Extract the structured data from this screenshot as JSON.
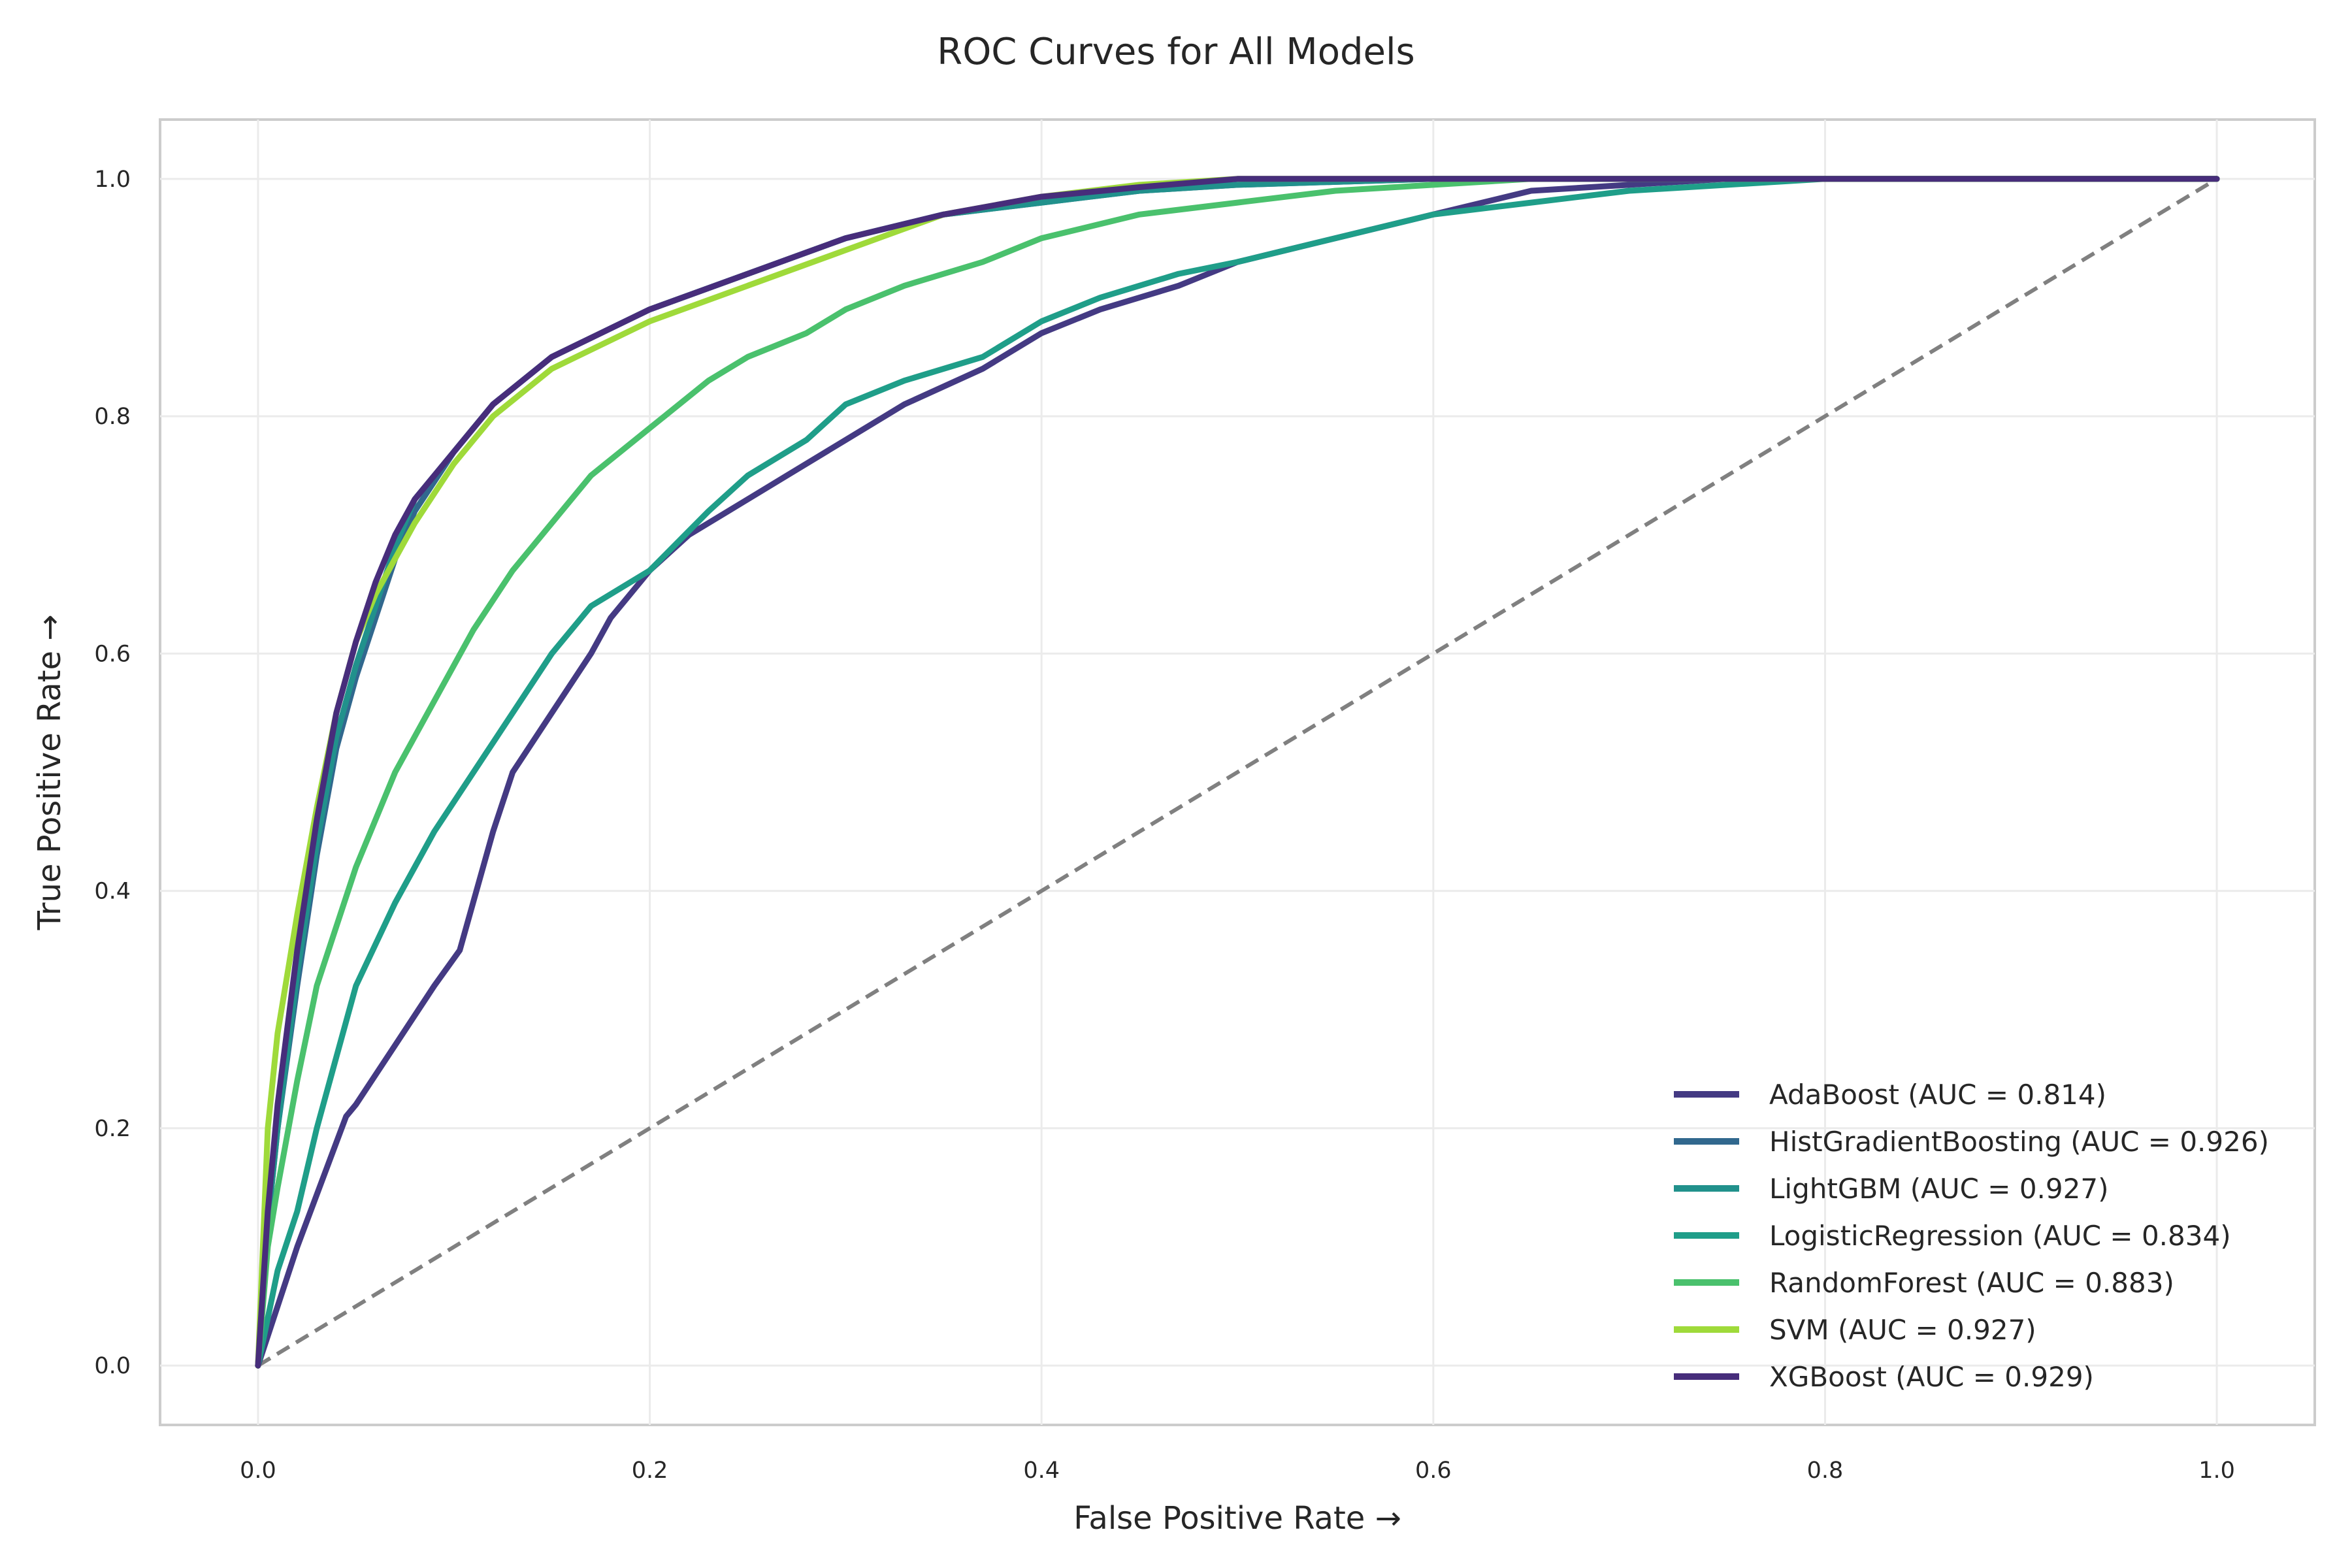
{
  "chart_data": {
    "type": "line",
    "title": "ROC Curves for All Models",
    "xlabel": "False Positive Rate →",
    "ylabel": "True Positive Rate →",
    "xlim": [
      -0.05,
      1.05
    ],
    "ylim": [
      -0.05,
      1.05
    ],
    "xticks": [
      0.0,
      0.2,
      0.4,
      0.6,
      0.8,
      1.0
    ],
    "yticks": [
      0.0,
      0.2,
      0.4,
      0.6,
      0.8,
      1.0
    ],
    "xtick_labels": [
      "0.0",
      "0.2",
      "0.4",
      "0.6",
      "0.8",
      "1.0"
    ],
    "ytick_labels": [
      "0.0",
      "0.2",
      "0.4",
      "0.6",
      "0.8",
      "1.0"
    ],
    "grid": true,
    "legend_position": "lower-right",
    "diagonal": {
      "x": [
        0,
        1
      ],
      "y": [
        0,
        1
      ],
      "color": "#808080",
      "style": "dashed"
    },
    "series": [
      {
        "name": "AdaBoost (AUC = 0.814)",
        "color": "#443a83",
        "x": [
          0,
          0.02,
          0.045,
          0.05,
          0.07,
          0.09,
          0.103,
          0.12,
          0.13,
          0.15,
          0.17,
          0.18,
          0.2,
          0.22,
          0.24,
          0.27,
          0.3,
          0.33,
          0.37,
          0.4,
          0.43,
          0.47,
          0.5,
          0.55,
          0.6,
          0.65,
          0.7,
          0.75,
          0.8,
          0.85,
          1.0
        ],
        "y": [
          0,
          0.1,
          0.21,
          0.22,
          0.27,
          0.32,
          0.35,
          0.45,
          0.5,
          0.55,
          0.6,
          0.63,
          0.67,
          0.7,
          0.72,
          0.75,
          0.78,
          0.81,
          0.84,
          0.87,
          0.89,
          0.91,
          0.93,
          0.95,
          0.97,
          0.99,
          0.995,
          1.0,
          1.0,
          1.0,
          1.0
        ]
      },
      {
        "name": "HistGradientBoosting (AUC = 0.926)",
        "color": "#31688e",
        "x": [
          0,
          0.005,
          0.01,
          0.02,
          0.03,
          0.04,
          0.05,
          0.06,
          0.07,
          0.08,
          0.1,
          0.12,
          0.15,
          0.2,
          0.25,
          0.3,
          0.35,
          0.4,
          0.45,
          0.5,
          0.6,
          0.7,
          0.8,
          1.0
        ],
        "y": [
          0,
          0.12,
          0.2,
          0.32,
          0.43,
          0.52,
          0.58,
          0.63,
          0.68,
          0.72,
          0.77,
          0.81,
          0.85,
          0.89,
          0.92,
          0.95,
          0.97,
          0.98,
          0.99,
          0.995,
          1.0,
          1.0,
          1.0,
          1.0
        ]
      },
      {
        "name": "LightGBM (AUC = 0.927)",
        "color": "#21918c",
        "x": [
          0,
          0.005,
          0.01,
          0.02,
          0.03,
          0.04,
          0.05,
          0.06,
          0.07,
          0.08,
          0.1,
          0.12,
          0.15,
          0.2,
          0.25,
          0.3,
          0.35,
          0.4,
          0.45,
          0.5,
          0.6,
          0.7,
          0.8,
          1.0
        ],
        "y": [
          0,
          0.12,
          0.2,
          0.33,
          0.44,
          0.53,
          0.59,
          0.64,
          0.69,
          0.73,
          0.77,
          0.81,
          0.85,
          0.89,
          0.92,
          0.95,
          0.97,
          0.98,
          0.99,
          0.995,
          1.0,
          1.0,
          1.0,
          1.0
        ]
      },
      {
        "name": "LogisticRegression (AUC = 0.834)",
        "color": "#1f9e89",
        "x": [
          0,
          0.01,
          0.02,
          0.03,
          0.04,
          0.05,
          0.07,
          0.09,
          0.11,
          0.13,
          0.15,
          0.17,
          0.2,
          0.23,
          0.25,
          0.28,
          0.3,
          0.33,
          0.37,
          0.4,
          0.43,
          0.47,
          0.5,
          0.55,
          0.6,
          0.65,
          0.7,
          0.75,
          0.8,
          0.85,
          1.0
        ],
        "y": [
          0,
          0.08,
          0.13,
          0.2,
          0.26,
          0.32,
          0.39,
          0.45,
          0.5,
          0.55,
          0.6,
          0.64,
          0.67,
          0.72,
          0.75,
          0.78,
          0.81,
          0.83,
          0.85,
          0.88,
          0.9,
          0.92,
          0.93,
          0.95,
          0.97,
          0.98,
          0.99,
          0.995,
          1.0,
          1.0,
          1.0
        ]
      },
      {
        "name": "RandomForest (AUC = 0.883)",
        "color": "#4ac16d",
        "x": [
          0,
          0.005,
          0.01,
          0.02,
          0.03,
          0.04,
          0.05,
          0.07,
          0.09,
          0.11,
          0.13,
          0.15,
          0.17,
          0.2,
          0.23,
          0.25,
          0.28,
          0.3,
          0.33,
          0.37,
          0.4,
          0.45,
          0.5,
          0.55,
          0.6,
          0.65,
          0.7,
          0.8,
          1.0
        ],
        "y": [
          0,
          0.1,
          0.15,
          0.24,
          0.32,
          0.37,
          0.42,
          0.5,
          0.56,
          0.62,
          0.67,
          0.71,
          0.75,
          0.79,
          0.83,
          0.85,
          0.87,
          0.89,
          0.91,
          0.93,
          0.95,
          0.97,
          0.98,
          0.99,
          0.995,
          1.0,
          1.0,
          1.0,
          1.0
        ]
      },
      {
        "name": "SVM (AUC = 0.927)",
        "color": "#9fda3a",
        "x": [
          0,
          0.005,
          0.01,
          0.02,
          0.03,
          0.04,
          0.05,
          0.06,
          0.07,
          0.08,
          0.1,
          0.12,
          0.15,
          0.2,
          0.25,
          0.3,
          0.35,
          0.4,
          0.45,
          0.5,
          0.6,
          0.7,
          0.8,
          1.0
        ],
        "y": [
          0,
          0.2,
          0.28,
          0.38,
          0.47,
          0.55,
          0.61,
          0.65,
          0.68,
          0.71,
          0.76,
          0.8,
          0.84,
          0.88,
          0.91,
          0.94,
          0.97,
          0.985,
          0.995,
          1.0,
          1.0,
          1.0,
          1.0,
          1.0
        ]
      },
      {
        "name": "XGBoost (AUC = 0.929)",
        "color": "#472d7b",
        "x": [
          0,
          0.005,
          0.01,
          0.02,
          0.03,
          0.04,
          0.05,
          0.06,
          0.07,
          0.08,
          0.1,
          0.12,
          0.15,
          0.2,
          0.25,
          0.3,
          0.35,
          0.4,
          0.45,
          0.5,
          0.6,
          0.7,
          0.8,
          1.0
        ],
        "y": [
          0,
          0.13,
          0.22,
          0.35,
          0.46,
          0.55,
          0.61,
          0.66,
          0.7,
          0.73,
          0.77,
          0.81,
          0.85,
          0.89,
          0.92,
          0.95,
          0.97,
          0.985,
          0.993,
          1.0,
          1.0,
          1.0,
          1.0,
          1.0
        ]
      }
    ]
  }
}
